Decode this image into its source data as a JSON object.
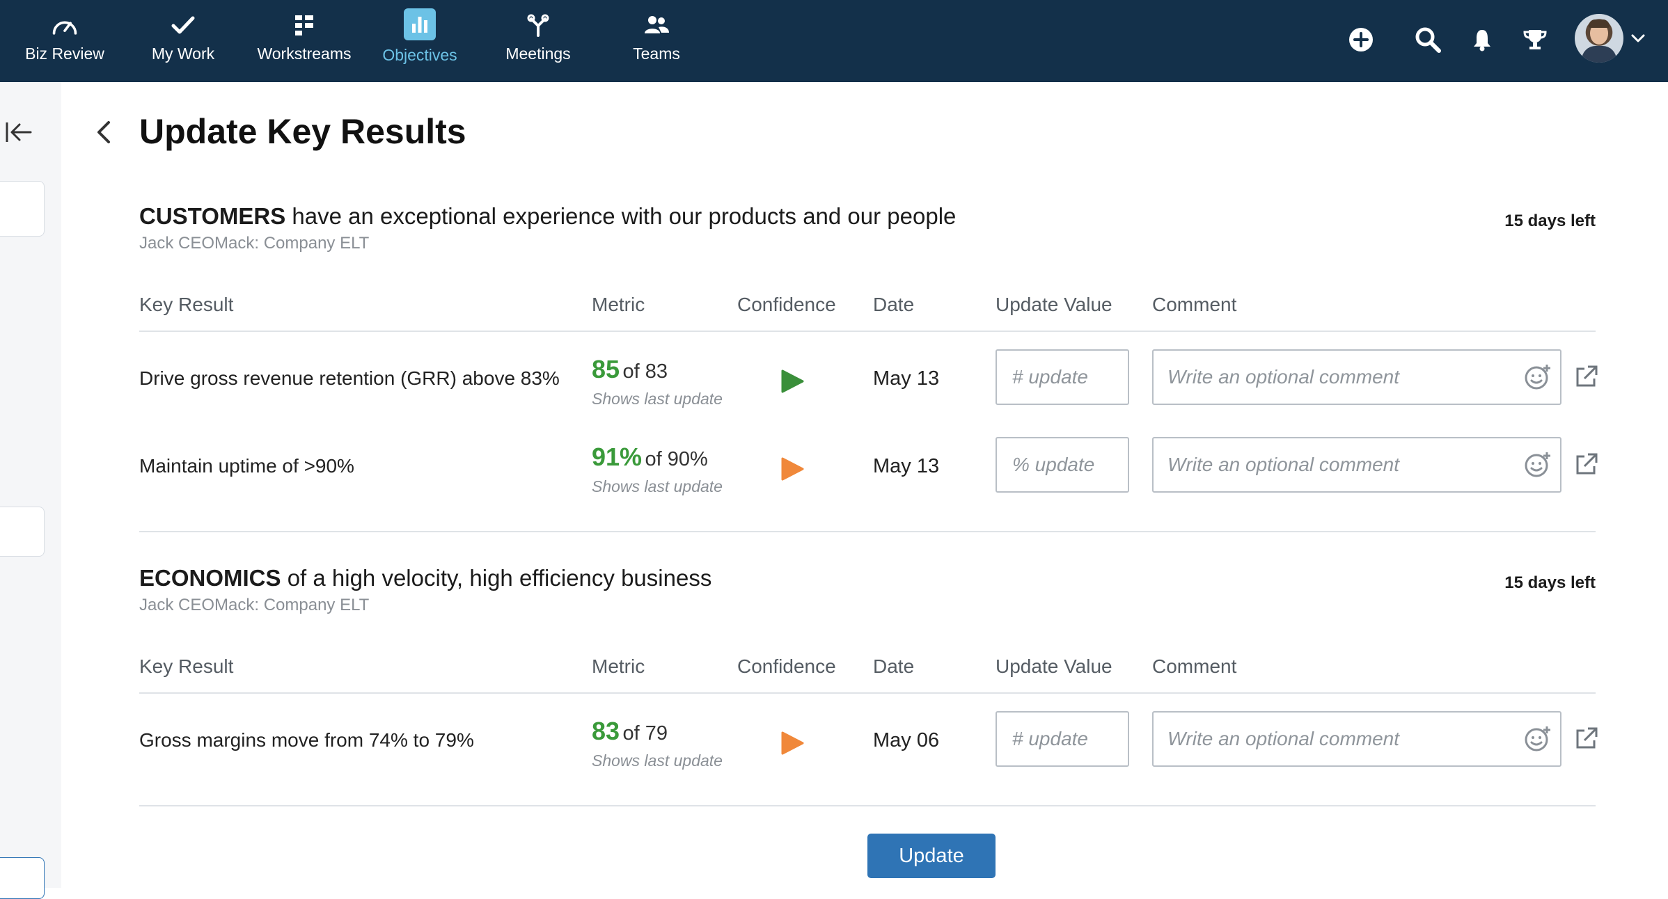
{
  "nav": {
    "items": [
      {
        "label": "Biz Review",
        "icon": "gauge-icon"
      },
      {
        "label": "My Work",
        "icon": "checkmark-icon"
      },
      {
        "label": "Workstreams",
        "icon": "grid-list-icon"
      },
      {
        "label": "Objectives",
        "icon": "bar-chart-icon",
        "active": true
      },
      {
        "label": "Meetings",
        "icon": "fork-icon"
      },
      {
        "label": "Teams",
        "icon": "people-icon"
      }
    ],
    "right_icons": [
      "add-circle-icon",
      "search-icon",
      "bell-icon",
      "trophy-icon"
    ]
  },
  "page": {
    "title": "Update Key Results"
  },
  "columns": {
    "key_result": "Key Result",
    "metric": "Metric",
    "confidence": "Confidence",
    "date": "Date",
    "update_value": "Update Value",
    "comment": "Comment"
  },
  "objectives": [
    {
      "title_cap": "CUSTOMERS",
      "title_rest": "have an exceptional experience with our products and our people",
      "owner": "Jack CEOMack: Company ELT",
      "days_left": "15 days left",
      "key_results": [
        {
          "name": "Drive gross revenue retention (GRR) above 83%",
          "metric_value": "85",
          "metric_target": "of 83",
          "metric_note": "Shows last update",
          "confidence": "green",
          "date": "May 13",
          "update_placeholder": "# update",
          "comment_placeholder": "Write an optional comment"
        },
        {
          "name": "Maintain uptime of >90%",
          "metric_value": "91%",
          "metric_target": "of 90%",
          "metric_note": "Shows last update",
          "confidence": "orange",
          "date": "May 13",
          "update_placeholder": "% update",
          "comment_placeholder": "Write an optional comment"
        }
      ]
    },
    {
      "title_cap": "ECONOMICS",
      "title_rest": "of a high velocity, high efficiency business",
      "owner": "Jack CEOMack: Company ELT",
      "days_left": "15 days left",
      "key_results": [
        {
          "name": "Gross margins move from 74% to 79%",
          "metric_value": "83",
          "metric_target": "of 79",
          "metric_note": "Shows last update",
          "confidence": "orange",
          "date": "May 06",
          "update_placeholder": "# update",
          "comment_placeholder": "Write an optional comment"
        }
      ]
    }
  ],
  "colors": {
    "nav_bg": "#13304a",
    "active": "#6cc2e6",
    "confidence_green": "#3a8f3a",
    "confidence_orange": "#f0883a",
    "metric_green": "#3a9a3a",
    "button": "#2f74b5"
  },
  "actions": {
    "update_label": "Update"
  }
}
